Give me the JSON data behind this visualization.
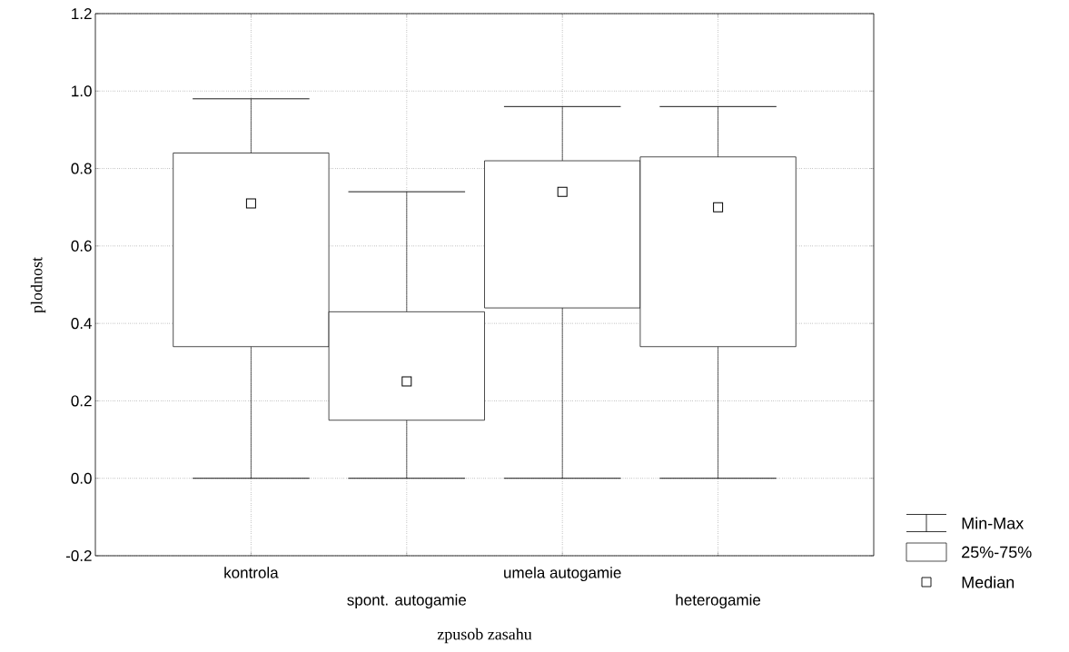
{
  "chart_data": {
    "type": "box",
    "xlabel": "zpusob zasahu",
    "ylabel": "plodnost",
    "categories": [
      "kontrola",
      "spont. autogamie",
      "umela autogamie",
      "heterogamie"
    ],
    "boxes": [
      {
        "low": 0.0,
        "q1": 0.34,
        "median": 0.71,
        "q3": 0.84,
        "high": 0.98
      },
      {
        "low": 0.0,
        "q1": 0.15,
        "median": 0.25,
        "q3": 0.43,
        "high": 0.74
      },
      {
        "low": 0.0,
        "q1": 0.44,
        "median": 0.74,
        "q3": 0.82,
        "high": 0.96
      },
      {
        "low": 0.0,
        "q1": 0.34,
        "median": 0.7,
        "q3": 0.83,
        "high": 0.96
      }
    ],
    "ylim": [
      -0.2,
      1.2
    ],
    "yticks": [
      {
        "value": -0.2,
        "label": "-0.2"
      },
      {
        "value": 0,
        "label": "0.0"
      },
      {
        "value": 0.2,
        "label": "0.2"
      },
      {
        "value": 0.4,
        "label": "0.4"
      },
      {
        "value": 0.6,
        "label": "0.6"
      },
      {
        "value": 0.8,
        "label": "0.8"
      },
      {
        "value": 1.0,
        "label": "1.0"
      },
      {
        "value": 1.2,
        "label": "1.2"
      }
    ],
    "grid": true,
    "marker": "square",
    "annotations": [
      "Min-Max",
      "25%-75%",
      "Median"
    ]
  }
}
